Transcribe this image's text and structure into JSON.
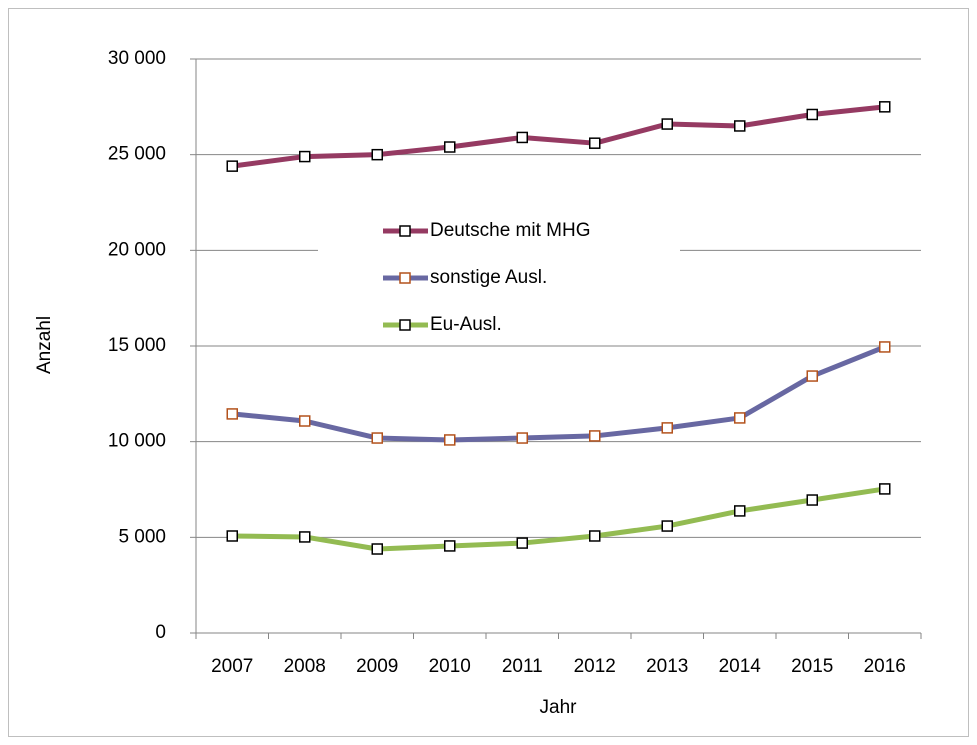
{
  "chart_data": {
    "type": "line",
    "xlabel": "Jahr",
    "ylabel": "Anzahl",
    "categories": [
      "2007",
      "2008",
      "2009",
      "2010",
      "2011",
      "2012",
      "2013",
      "2014",
      "2015",
      "2016"
    ],
    "series": [
      {
        "name": "Deutsche mit MHG",
        "color": "#953a62",
        "marker_stroke": "#000000",
        "values": [
          24400,
          24900,
          25000,
          25400,
          25900,
          25600,
          26600,
          26500,
          27100,
          27500
        ]
      },
      {
        "name": "sonstige Ausl.",
        "color": "#6868a2",
        "marker_stroke": "#b3521c",
        "values": [
          11450,
          11080,
          10190,
          10090,
          10190,
          10300,
          10720,
          11240,
          13430,
          14950
        ]
      },
      {
        "name": "Eu-Ausl.",
        "color": "#93bb52",
        "marker_stroke": "#000000",
        "values": [
          5070,
          5020,
          4390,
          4550,
          4700,
          5070,
          5590,
          6380,
          6950,
          7530
        ]
      }
    ],
    "ylim": [
      0,
      30000
    ],
    "yticks": [
      0,
      {
        "value": 5000,
        "label": "5 000"
      },
      {
        "value": 10000,
        "label": "10 000"
      },
      {
        "value": 15000,
        "label": "15 000"
      },
      {
        "value": 20000,
        "label": "20 000"
      },
      {
        "value": 25000,
        "label": "25 000"
      },
      {
        "value": 30000,
        "label": "30 000"
      }
    ],
    "grid": true
  }
}
